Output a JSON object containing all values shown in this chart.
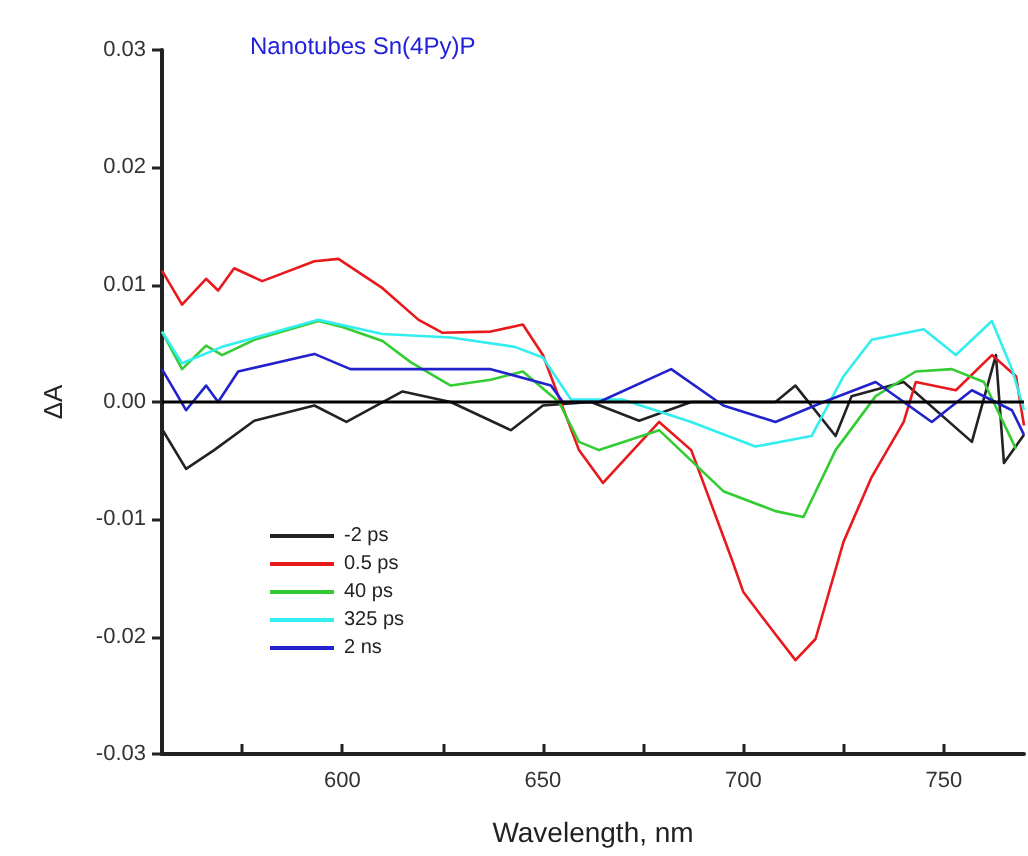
{
  "chart_data": {
    "type": "line",
    "title": "Nanotubes Sn(4Py)P",
    "xlabel": "Wavelength, nm",
    "ylabel": "ΔA",
    "xlim": [
      555,
      770
    ],
    "ylim": [
      -0.03,
      0.03
    ],
    "xticks": [
      {
        "value": 575,
        "label": null
      },
      600,
      {
        "value": 625,
        "label": null
      },
      650,
      {
        "value": 675,
        "label": null
      },
      700,
      {
        "value": 725,
        "label": null
      },
      750
    ],
    "yticks": [
      {
        "value": -0.03,
        "label": "-0.03"
      },
      {
        "value": -0.02,
        "label": "-0.02"
      },
      {
        "value": -0.01,
        "label": "-0.01"
      },
      {
        "value": 0,
        "label": "0.00"
      },
      {
        "value": 0.01,
        "label": "0.01"
      },
      {
        "value": 0.02,
        "label": "0.02"
      },
      {
        "value": 0.03,
        "label": "0.03"
      }
    ],
    "grid": false,
    "legend": "bottom left",
    "marker": "none",
    "line_style": "solid",
    "ref_lines": [
      {
        "axis": "y",
        "value": 0,
        "color": "#000000"
      }
    ],
    "series": [
      {
        "name": "-2 ps",
        "color": "#222222",
        "x": [
          555,
          561,
          568,
          578,
          593,
          601,
          615,
          627,
          642,
          650,
          662,
          674,
          687,
          708,
          713,
          723,
          727,
          740,
          757,
          763,
          765,
          770
        ],
        "values": [
          -0.0023,
          -0.0057,
          -0.0041,
          -0.0016,
          -0.0003,
          -0.0017,
          0.0009,
          0,
          -0.0024,
          -0.0003,
          0,
          -0.0016,
          0,
          0,
          0.0014,
          -0.0029,
          0.0005,
          0.0017,
          -0.0034,
          0.004,
          -0.0052,
          -0.0028
        ]
      },
      {
        "name": "0.5 ps",
        "color": "#e8191c",
        "x": [
          555,
          560,
          566,
          569,
          573,
          580,
          593,
          599,
          610,
          619,
          625,
          637,
          645,
          650,
          659,
          665,
          679,
          687,
          697,
          700,
          708,
          713,
          718,
          725,
          732,
          740,
          743,
          753,
          762,
          768,
          770
        ],
        "values": [
          0.0112,
          0.0083,
          0.0105,
          0.0095,
          0.0114,
          0.0103,
          0.012,
          0.0122,
          0.0097,
          0.007,
          0.0059,
          0.006,
          0.0066,
          0.004,
          -0.0041,
          -0.0069,
          -0.0017,
          -0.0041,
          -0.0133,
          -0.0162,
          -0.0198,
          -0.022,
          -0.0202,
          -0.0119,
          -0.0064,
          -0.0017,
          0.0017,
          0.001,
          0.004,
          0.0022,
          -0.002
        ]
      },
      {
        "name": "40 ps",
        "color": "#33cc33",
        "x": [
          555,
          560,
          566,
          570,
          578,
          594,
          600,
          610,
          617,
          627,
          637,
          645,
          654,
          659,
          664,
          679,
          695,
          708,
          715,
          723,
          733,
          743,
          752,
          760,
          768
        ],
        "values": [
          0.006,
          0.0028,
          0.0048,
          0.004,
          0.0053,
          0.0069,
          0.0064,
          0.0052,
          0.0034,
          0.0014,
          0.0019,
          0.0026,
          0,
          -0.0034,
          -0.0041,
          -0.0024,
          -0.0076,
          -0.0093,
          -0.0098,
          -0.0041,
          0.0005,
          0.0026,
          0.0028,
          0.0017,
          -0.004
        ]
      },
      {
        "name": "325 ps",
        "color": "#33eeee",
        "x": [
          555,
          560,
          570,
          594,
          610,
          627,
          643,
          650,
          657,
          670,
          687,
          703,
          717,
          725,
          732,
          745,
          753,
          762,
          767,
          770
        ],
        "values": [
          0.006,
          0.0033,
          0.0047,
          0.007,
          0.0058,
          0.0055,
          0.0047,
          0.0038,
          0.0002,
          0.0002,
          -0.0017,
          -0.0038,
          -0.0029,
          0.0022,
          0.0053,
          0.0062,
          0.004,
          0.0069,
          0.0028,
          -0.0007
        ]
      },
      {
        "name": "2 ns",
        "color": "#2222cc",
        "x": [
          555,
          561,
          566,
          569,
          574,
          593,
          602,
          619,
          637,
          652,
          655,
          664,
          682,
          695,
          708,
          720,
          733,
          747,
          757,
          767,
          770
        ],
        "values": [
          0.0028,
          -0.0007,
          0.0014,
          0,
          0.0026,
          0.0041,
          0.0028,
          0.0028,
          0.0028,
          0.0014,
          0,
          0,
          0.0028,
          -0.0003,
          -0.0017,
          0,
          0.0017,
          -0.0017,
          0.001,
          -0.0007,
          -0.0028
        ]
      }
    ]
  }
}
